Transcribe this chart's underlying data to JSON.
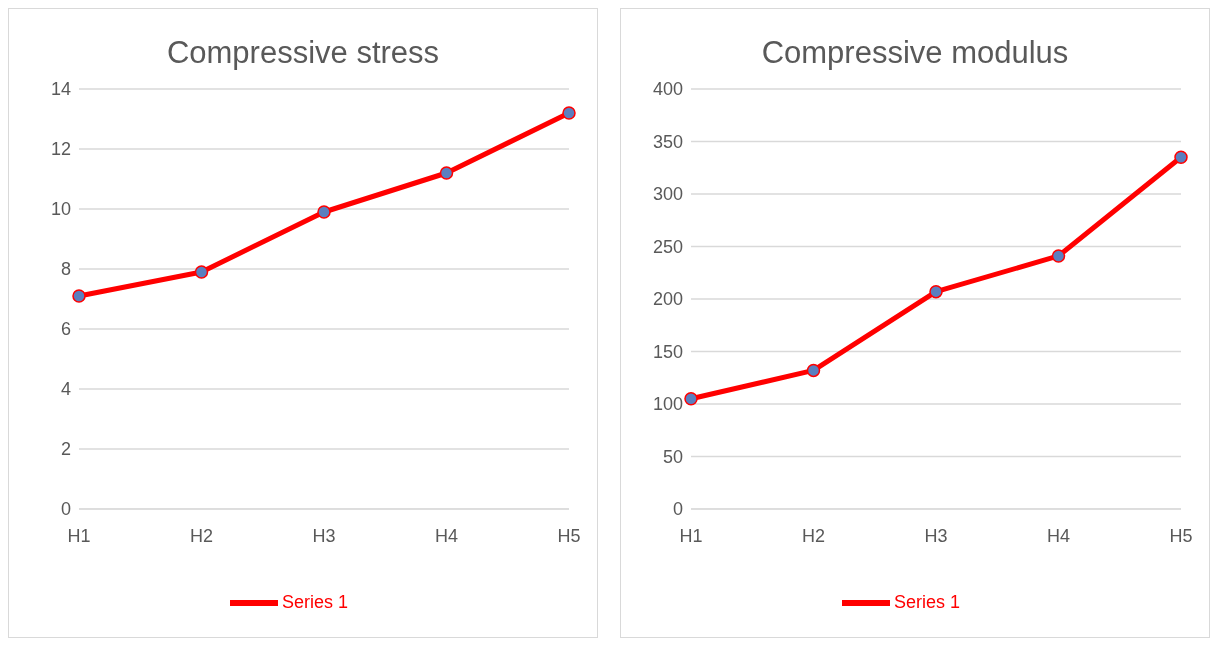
{
  "chart_data": [
    {
      "type": "line",
      "title": "Compressive stress",
      "categories": [
        "H1",
        "H2",
        "H3",
        "H4",
        "H5"
      ],
      "series": [
        {
          "name": "Series 1",
          "color": "#ff0000",
          "values": [
            7.1,
            7.9,
            9.9,
            11.2,
            13.2
          ]
        }
      ],
      "ylim": [
        0,
        14
      ],
      "yticks": [
        0,
        2,
        4,
        6,
        8,
        10,
        12,
        14
      ],
      "grid": "y",
      "legend": "bottom",
      "marker": "circle",
      "line_style": "solid"
    },
    {
      "type": "line",
      "title": "Compressive modulus",
      "categories": [
        "H1",
        "H2",
        "H3",
        "H4",
        "H5"
      ],
      "series": [
        {
          "name": "Series 1",
          "color": "#ff0000",
          "values": [
            105,
            132,
            207,
            241,
            335
          ]
        }
      ],
      "ylim": [
        0,
        400
      ],
      "yticks": [
        0,
        50,
        100,
        150,
        200,
        250,
        300,
        350,
        400
      ],
      "grid": "y",
      "legend": "bottom",
      "marker": "circle",
      "line_style": "solid"
    }
  ]
}
